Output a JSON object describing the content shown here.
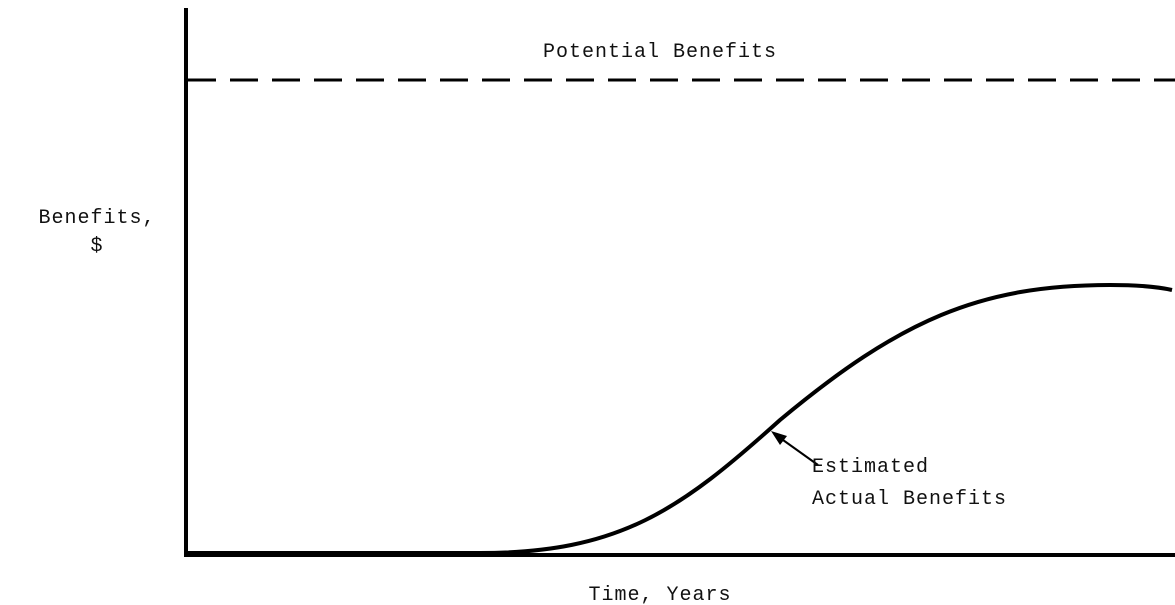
{
  "chart_data": {
    "type": "concept",
    "series_label": "Potential Benefits",
    "y_label": [
      "Benefits,",
      "$"
    ],
    "x_label": "Time, Years",
    "annotation": [
      "Estimated",
      "Actual Benefits"
    ]
  }
}
